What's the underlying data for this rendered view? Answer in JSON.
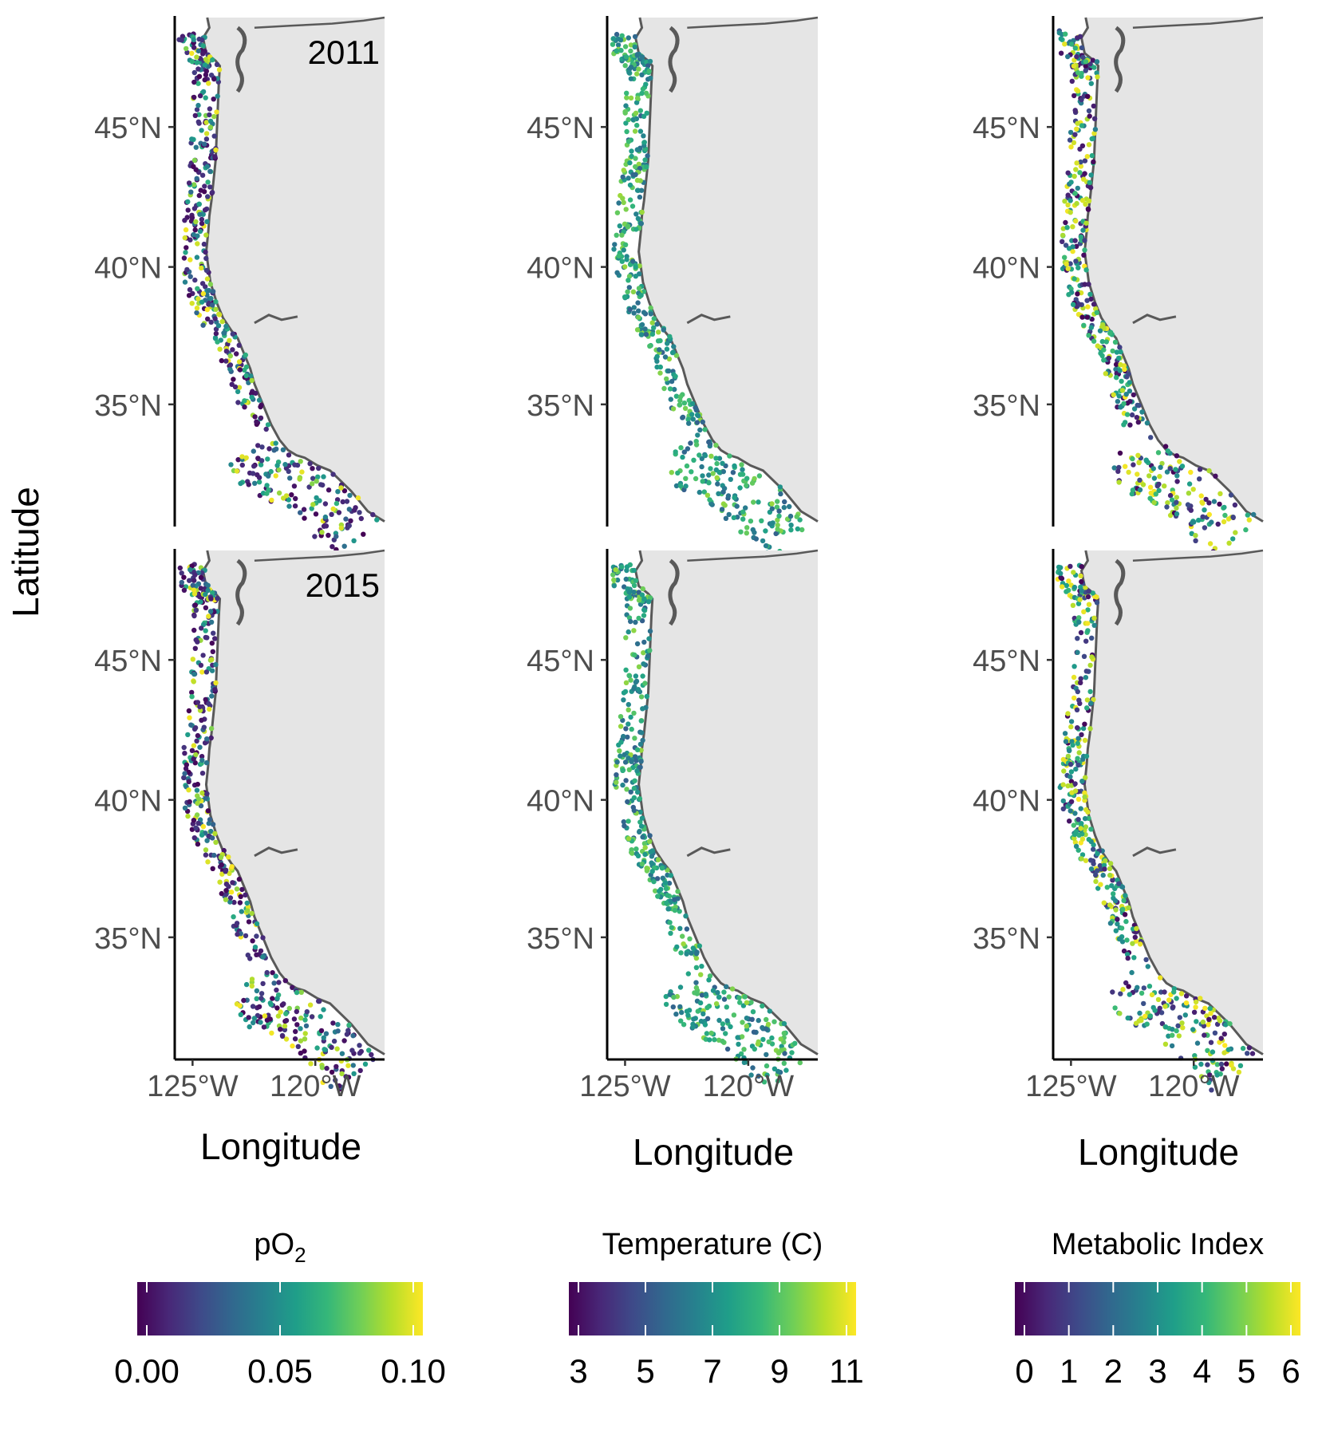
{
  "figure": {
    "y_axis_title": "Latitude",
    "x_axis_title": "Longitude",
    "lat_tick_labels": [
      "45°N",
      "40°N",
      "35°N"
    ],
    "lon_tick_labels": [
      "125°W",
      "120°W"
    ],
    "row_labels": [
      "2011",
      "2015"
    ]
  },
  "colors": {
    "land": "#e5e5e5",
    "coastline": "#595959",
    "axis": "#000000",
    "tick_text": "#4d4d4d",
    "viridis": [
      "#440154",
      "#482878",
      "#3e4a89",
      "#31688e",
      "#26828e",
      "#1f9e89",
      "#35b779",
      "#6ece58",
      "#b5de2b",
      "#fde725"
    ]
  },
  "legends": [
    {
      "title_main": "pO",
      "title_sub": "2",
      "tick_labels": [
        "0.00",
        "0.05",
        "0.10"
      ]
    },
    {
      "title_main": "Temperature (C)",
      "title_sub": "",
      "tick_labels": [
        "3",
        "5",
        "7",
        "9",
        "11"
      ]
    },
    {
      "title_main": "Metabolic Index",
      "title_sub": "",
      "tick_labels": [
        "0",
        "1",
        "2",
        "3",
        "4",
        "5",
        "6"
      ]
    }
  ],
  "chart_data": [
    {
      "type": "scatter",
      "row": "2011",
      "variable": "pO2",
      "color_range": [
        0,
        0.1
      ],
      "xlim": [
        -126.2,
        -117.3
      ],
      "ylim": [
        32.2,
        49.0
      ]
    },
    {
      "type": "scatter",
      "row": "2011",
      "variable": "Temperature (C)",
      "color_range": [
        3,
        11
      ],
      "xlim": [
        -126.2,
        -117.3
      ],
      "ylim": [
        32.2,
        49.0
      ]
    },
    {
      "type": "scatter",
      "row": "2011",
      "variable": "Metabolic Index",
      "color_range": [
        0,
        6
      ],
      "xlim": [
        -126.2,
        -117.3
      ],
      "ylim": [
        32.2,
        49.0
      ]
    },
    {
      "type": "scatter",
      "row": "2015",
      "variable": "pO2",
      "color_range": [
        0,
        0.1
      ],
      "xlim": [
        -126.2,
        -117.3
      ],
      "ylim": [
        32.2,
        49.0
      ]
    },
    {
      "type": "scatter",
      "row": "2015",
      "variable": "Temperature (C)",
      "color_range": [
        3,
        11
      ],
      "xlim": [
        -126.2,
        -117.3
      ],
      "ylim": [
        32.2,
        49.0
      ]
    },
    {
      "type": "scatter",
      "row": "2015",
      "variable": "Metabolic Index",
      "color_range": [
        0,
        6
      ],
      "xlim": [
        -126.2,
        -117.3
      ],
      "ylim": [
        32.2,
        49.0
      ]
    }
  ]
}
